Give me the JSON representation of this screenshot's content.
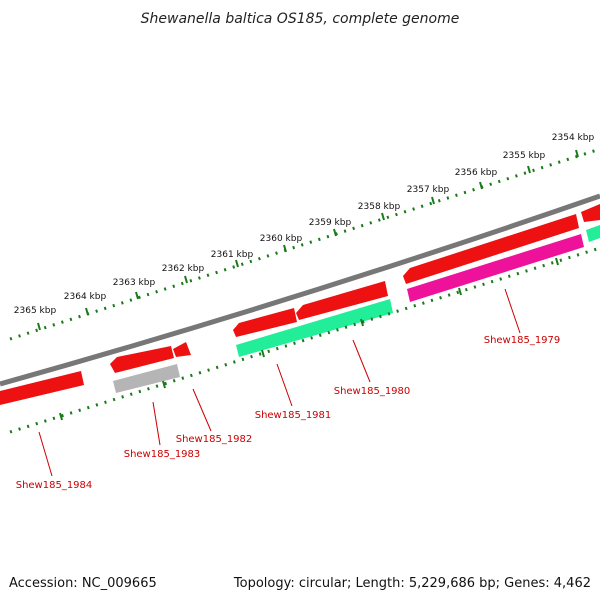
{
  "title": "Shewanella baltica OS185, complete genome",
  "footer": {
    "accession": "Accession: NC_009665",
    "summary": "Topology: circular; Length: 5,229,686 bp; Genes: 4,462"
  },
  "colors": {
    "backbone": "#777777",
    "ticks": "#1a7a1a",
    "gene_forward": "#ee1111",
    "gene_reverse_teal": "#22ee99",
    "gene_reverse_magenta": "#ee1199",
    "gene_grey": "#b5b5b5",
    "label": "#cc0000"
  },
  "ruler": {
    "unit": "kbp",
    "labels": [
      "2354 kbp",
      "2355 kbp",
      "2356 kbp",
      "2357 kbp",
      "2358 kbp",
      "2359 kbp",
      "2360 kbp",
      "2361 kbp",
      "2362 kbp",
      "2363 kbp",
      "2364 kbp",
      "2365 kbp"
    ]
  },
  "genes": [
    {
      "locus": "Shew185_1979",
      "color": "gene_reverse_magenta"
    },
    {
      "locus": "Shew185_1980",
      "color": "gene_reverse_teal"
    },
    {
      "locus": "Shew185_1981",
      "color": "gene_forward"
    },
    {
      "locus": "Shew185_1982",
      "color": "gene_forward"
    },
    {
      "locus": "Shew185_1983",
      "color": "gene_grey"
    },
    {
      "locus": "Shew185_1984",
      "color": "gene_forward"
    }
  ]
}
